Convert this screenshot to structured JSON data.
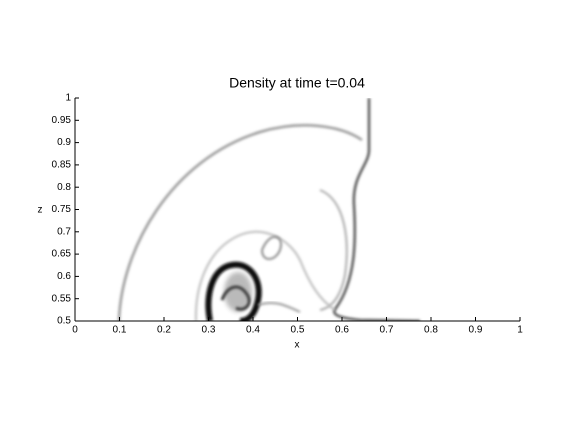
{
  "chart_data": {
    "type": "image",
    "title": "Density at time t=0.04",
    "xlabel": "x",
    "ylabel": "z",
    "xlim": [
      0,
      1
    ],
    "ylim": [
      0.5,
      1
    ],
    "xticks": [
      0,
      0.1,
      0.2,
      0.3,
      0.4,
      0.5,
      0.6,
      0.7,
      0.8,
      0.9,
      1
    ],
    "yticks": [
      0.5,
      0.55,
      0.6,
      0.65,
      0.7,
      0.75,
      0.8,
      0.85,
      0.9,
      0.95,
      1
    ]
  }
}
